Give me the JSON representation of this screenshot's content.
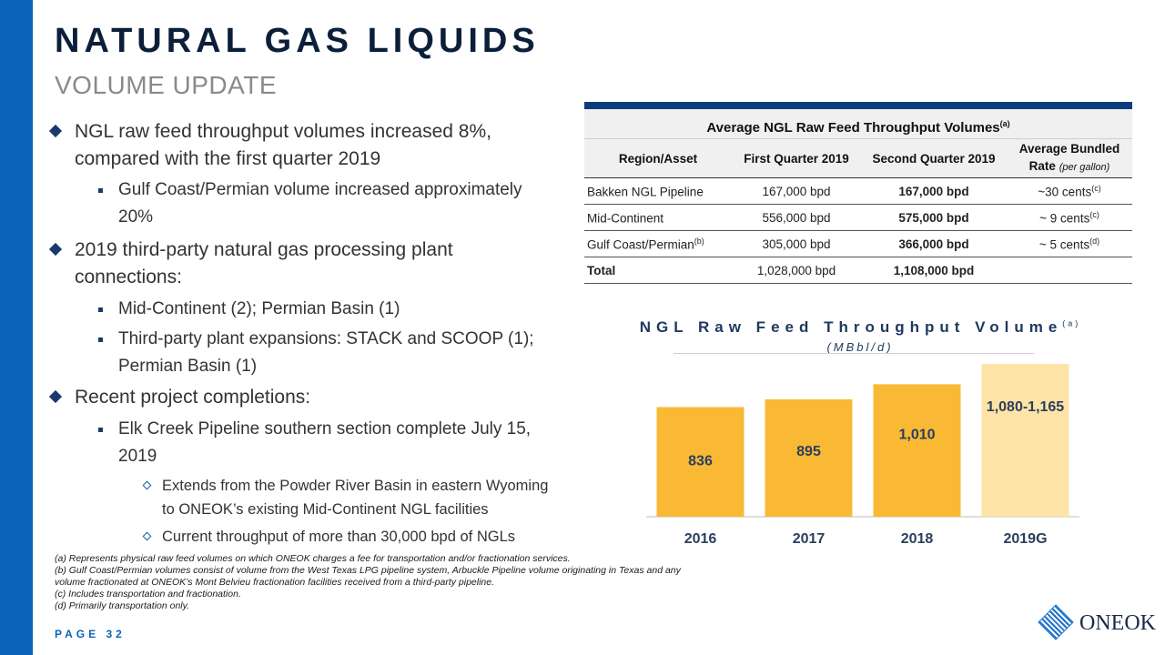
{
  "header": {
    "title": "NATURAL GAS LIQUIDS",
    "subtitle": "VOLUME UPDATE"
  },
  "bullets": {
    "b1": "NGL raw feed throughput volumes increased 8%, compared with the first quarter 2019",
    "b1_sub1": "Gulf Coast/Permian volume increased approximately 20%",
    "b2": "2019 third-party natural gas processing plant connections:",
    "b2_sub1": "Mid-Continent (2); Permian Basin (1)",
    "b2_sub2": "Third-party plant expansions: STACK and SCOOP (1); Permian Basin (1)",
    "b3": "Recent project completions:",
    "b3_sub1": "Elk Creek Pipeline southern section complete July 15, 2019",
    "b3_sub1_a": "Extends from the Powder River Basin in eastern Wyoming to ONEOK’s existing Mid-Continent NGL facilities",
    "b3_sub1_b": "Current throughput of more than 30,000 bpd of NGLs"
  },
  "table": {
    "title": "Average NGL Raw Feed Throughput Volumes",
    "title_note": "(a)",
    "headers": {
      "region": "Region/Asset",
      "q1": "First Quarter 2019",
      "q2": "Second Quarter 2019",
      "rate_main": "Average Bundled",
      "rate_word": "Rate",
      "rate_unit": "(per gallon)"
    },
    "rows": [
      {
        "region": "Bakken NGL Pipeline",
        "region_note": "",
        "q1": "167,000 bpd",
        "q2": "167,000 bpd",
        "rate": "~30 cents",
        "rate_note": "(c)"
      },
      {
        "region": "Mid-Continent",
        "region_note": "",
        "q1": "556,000 bpd",
        "q2": "575,000 bpd",
        "rate": "~ 9 cents",
        "rate_note": "(c)"
      },
      {
        "region": "Gulf Coast/Permian",
        "region_note": "(b)",
        "q1": "305,000 bpd",
        "q2": "366,000 bpd",
        "rate": "~ 5 cents",
        "rate_note": "(d)"
      }
    ],
    "total": {
      "label": "Total",
      "q1": "1,028,000 bpd",
      "q2": "1,108,000 bpd"
    }
  },
  "chart_title": "NGL Raw Feed Throughput Volume",
  "chart_title_note": "(a)",
  "chart_subtitle": "(MBbl/d)",
  "chart_data": {
    "type": "bar",
    "title": "NGL Raw Feed Throughput Volume",
    "subtitle": "(MBbl/d)",
    "categories": [
      "2016",
      "2017",
      "2018",
      "2019G"
    ],
    "values": [
      836,
      895,
      1010,
      1165
    ],
    "range_low_2019G": 1080,
    "labels": [
      "836",
      "895",
      "1,010",
      "1,080-1,165"
    ],
    "ylim": [
      0,
      1200
    ],
    "colors": [
      "#f9b935",
      "#f9b935",
      "#f9b935",
      "#fde3a6"
    ],
    "grid": false,
    "legend": "none"
  },
  "footnotes": {
    "a": "(a) Represents physical raw feed volumes on which ONEOK charges a fee for transportation and/or fractionation services.",
    "b": "(b) Gulf Coast/Permian volumes consist of volume from the West Texas LPG pipeline system, Arbuckle Pipeline volume originating in Texas and any volume fractionated at ONEOK’s Mont Belvieu fractionation facilities received from a third-party pipeline.",
    "c": "(c) Includes transportation and fractionation.",
    "d": "(d) Primarily transportation only."
  },
  "page_label": "PAGE 32",
  "logo_text": "ONEOK",
  "colors": {
    "accent_blue": "#0a63b6",
    "navy": "#0b1f3a",
    "bar": "#f9b935",
    "bar_forecast": "#fde3a6"
  }
}
